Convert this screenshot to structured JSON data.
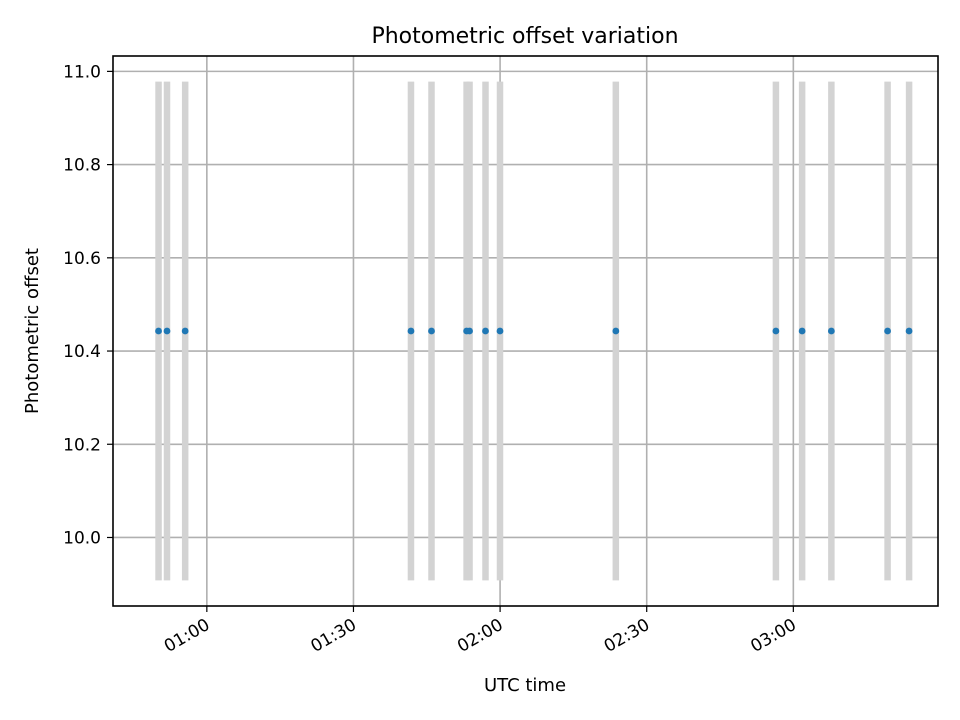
{
  "chart_data": {
    "type": "scatter",
    "title": "Photometric offset variation",
    "xlabel": "UTC time",
    "ylabel": "Photometric offset",
    "x_ticks": [
      "01:00",
      "01:30",
      "02:00",
      "02:30",
      "03:00"
    ],
    "x_tick_minutes": [
      60,
      90,
      120,
      150,
      180
    ],
    "y_ticks": [
      "10.0",
      "10.2",
      "10.4",
      "10.6",
      "10.8",
      "11.0"
    ],
    "y_tick_values": [
      10.0,
      10.2,
      10.4,
      10.6,
      10.8,
      11.0
    ],
    "xlim": [
      "00:40:48",
      "03:29:36"
    ],
    "ylim": [
      9.853,
      11.033
    ],
    "grid": true,
    "series": [
      {
        "marker_color": "#1f77b4",
        "error_color": "#d3d3d3",
        "x": [
          "00:50:07",
          "00:51:51",
          "00:55:34",
          "01:41:46",
          "01:45:58",
          "01:53:09",
          "01:53:45",
          "01:57:01",
          "01:59:59",
          "02:23:41",
          "02:56:26",
          "03:01:48",
          "03:07:47",
          "03:19:17",
          "03:23:41"
        ],
        "y": [
          10.443,
          10.443,
          10.443,
          10.443,
          10.443,
          10.443,
          10.443,
          10.443,
          10.443,
          10.443,
          10.443,
          10.443,
          10.443,
          10.443,
          10.443
        ],
        "y_err_low": [
          9.908,
          9.908,
          9.908,
          9.908,
          9.908,
          9.908,
          9.908,
          9.908,
          9.908,
          9.908,
          9.908,
          9.908,
          9.908,
          9.908,
          9.908
        ],
        "y_err_high": [
          10.978,
          10.978,
          10.978,
          10.978,
          10.978,
          10.978,
          10.978,
          10.978,
          10.978,
          10.978,
          10.978,
          10.978,
          10.978,
          10.978,
          10.978
        ]
      }
    ]
  }
}
